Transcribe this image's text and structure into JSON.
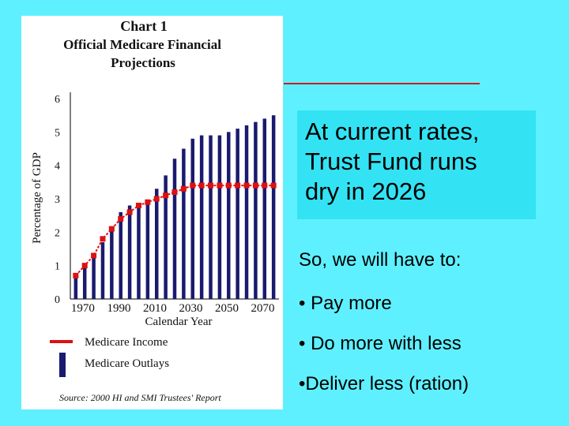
{
  "chart_data": {
    "type": "bar",
    "title_line1": "Chart 1",
    "title_line2": "Official Medicare Financial",
    "title_line3": "Projections",
    "xlabel": "Calendar Year",
    "ylabel": "Percentage of GDP",
    "ylim": [
      0,
      6
    ],
    "yticks": [
      "0",
      "1",
      "2",
      "3",
      "4",
      "5",
      "6"
    ],
    "xticks": [
      "1970",
      "1990",
      "2010",
      "2030",
      "2050",
      "2070"
    ],
    "x": [
      1966,
      1971,
      1976,
      1981,
      1986,
      1991,
      1996,
      2001,
      2006,
      2011,
      2016,
      2021,
      2026,
      2031,
      2036,
      2041,
      2046,
      2051,
      2056,
      2061,
      2066,
      2071,
      2076
    ],
    "series": [
      {
        "name": "Medicare Outlays",
        "kind": "bar",
        "color": "#1a1a6e",
        "values": [
          0.7,
          1.0,
          1.3,
          1.7,
          2.1,
          2.6,
          2.8,
          2.8,
          2.9,
          3.3,
          3.7,
          4.2,
          4.5,
          4.8,
          4.9,
          4.9,
          4.9,
          5.0,
          5.1,
          5.2,
          5.3,
          5.4,
          5.5
        ]
      },
      {
        "name": "Medicare Income",
        "kind": "line",
        "color": "#dd1111",
        "values": [
          0.7,
          1.0,
          1.3,
          1.8,
          2.1,
          2.4,
          2.6,
          2.8,
          2.9,
          3.0,
          3.1,
          3.2,
          3.3,
          3.4,
          3.4,
          3.4,
          3.4,
          3.4,
          3.4,
          3.4,
          3.4,
          3.4,
          3.4
        ]
      }
    ],
    "legend": {
      "placement": "bottom-left",
      "income_label": "Medicare Income",
      "outlays_label": "Medicare Outlays"
    },
    "source": "Source:  2000 HI and SMI Trustees' Report"
  },
  "slide": {
    "callout_lines": [
      "At current rates,",
      "Trust Fund runs",
      "dry in 2026"
    ],
    "intro": "So, we will have to:",
    "bullets": [
      "• Pay more",
      "• Do more with less",
      "•Deliver less (ration)"
    ],
    "colors": {
      "background": "#5ff0ff",
      "callout": "#33e3f4",
      "accent_line": "#d31a1a"
    }
  }
}
